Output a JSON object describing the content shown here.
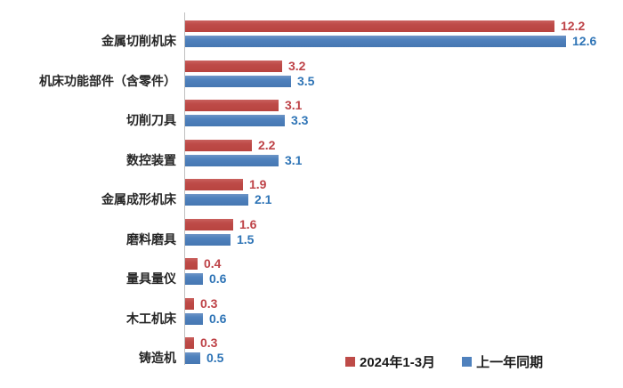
{
  "chart_data": {
    "type": "bar",
    "orientation": "horizontal",
    "title": "",
    "categories": [
      "金属切削机床",
      "机床功能部件（含零件）",
      "切削刀具",
      "数控装置",
      "金属成形机床",
      "磨料磨具",
      "量具量仪",
      "木工机床",
      "铸造机"
    ],
    "series": [
      {
        "name": "2024年1-3月",
        "color": "#BE4B48",
        "value_text_color": "#BE4247",
        "values": [
          12.2,
          3.2,
          3.1,
          2.2,
          1.9,
          1.6,
          0.4,
          0.3,
          0.3
        ]
      },
      {
        "name": "上一年同期",
        "color": "#4F81BD",
        "value_text_color": "#2E74B6",
        "values": [
          12.6,
          3.5,
          3.3,
          3.1,
          2.1,
          1.5,
          0.6,
          0.6,
          0.5
        ]
      }
    ],
    "value_label_decimals": 1,
    "xlim": [
      0,
      14.5
    ],
    "grid": false,
    "legend_position": "bottom-right"
  },
  "legend": {
    "items": [
      {
        "label": "2024年1-3月",
        "color": "#BE4B48"
      },
      {
        "label": "上一年同期",
        "color": "#4F81BD"
      }
    ]
  },
  "colors": {
    "background": "#FFFFFF",
    "axis": "#BFBFBF",
    "category_label_text": "#262626"
  }
}
